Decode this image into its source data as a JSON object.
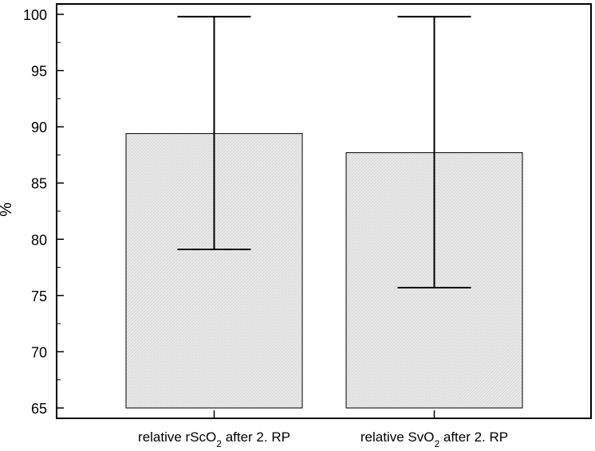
{
  "chart_data": {
    "type": "bar",
    "ylabel": "%",
    "ylim": [
      65,
      100
    ],
    "yticks": [
      65,
      70,
      75,
      80,
      85,
      90,
      95,
      100
    ],
    "grid": false,
    "categories": [
      {
        "prefix": "relative rScO",
        "subscript": "2",
        "suffix": " after 2. RP"
      },
      {
        "prefix": "relative SvO",
        "subscript": "2",
        "suffix": " after 2. RP"
      }
    ],
    "values": [
      89.4,
      87.7
    ],
    "error_bars": [
      {
        "lower": 79.1,
        "upper": 99.8
      },
      {
        "lower": 75.7,
        "upper": 99.8
      }
    ],
    "bar_color": "#e3e3e3",
    "error_bar_color": "#000000"
  }
}
